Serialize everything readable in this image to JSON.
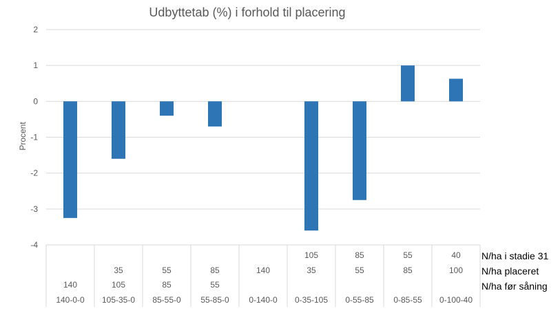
{
  "chart_data": {
    "type": "bar",
    "title": "Udbyttetab (%) i forhold til placering",
    "xlabel": "",
    "ylabel": "Procent",
    "ylim": [
      -4,
      2
    ],
    "yticks": [
      2,
      1,
      0,
      -1,
      -2,
      -3,
      -4
    ],
    "grid": true,
    "categories": [
      "140-0-0",
      "105-35-0",
      "85-55-0",
      "55-85-0",
      "0-140-0",
      "0-35-105",
      "0-55-85",
      "0-85-55",
      "0-100-40"
    ],
    "values": [
      -3.25,
      -1.6,
      -0.4,
      -0.7,
      0,
      -3.6,
      -2.75,
      1.0,
      0.63
    ],
    "bar_color": "#2E75B6",
    "table": {
      "row_labels": [
        "N/ha i stadie 31",
        "N/ha placeret",
        "N/ha før såning"
      ],
      "stadie31": [
        "",
        "",
        "",
        "",
        "",
        "105",
        "85",
        "55",
        "40"
      ],
      "placeret": [
        "",
        "35",
        "55",
        "85",
        "140",
        "35",
        "55",
        "85",
        "100"
      ],
      "foer_saaning": [
        "140",
        "105",
        "85",
        "55",
        "",
        "",
        "",
        "",
        ""
      ]
    }
  }
}
